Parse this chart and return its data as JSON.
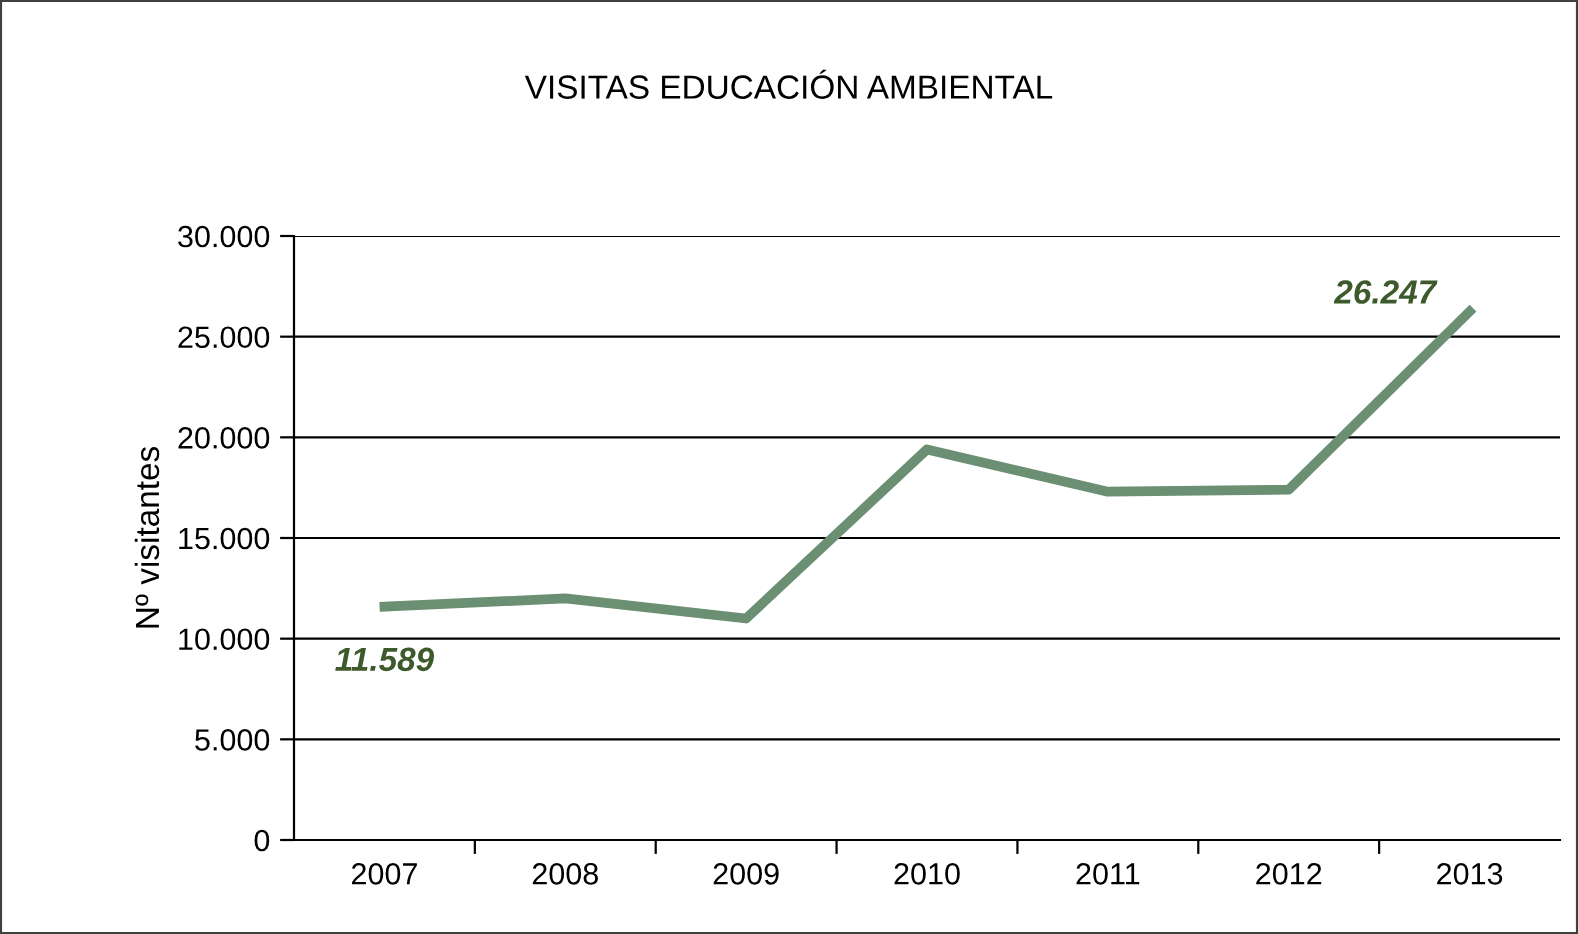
{
  "chart_data": {
    "type": "line",
    "title": "VISITAS EDUCACIÓN AMBIENTAL",
    "ylabel": "Nº visitantes",
    "categories": [
      "2007",
      "2008",
      "2009",
      "2010",
      "2011",
      "2012",
      "2013"
    ],
    "series": [
      {
        "color": "#6a8f72",
        "values": [
          11589,
          12000,
          11000,
          19400,
          17300,
          17400,
          26247
        ],
        "value_labels": [
          "11.589",
          null,
          null,
          null,
          null,
          null,
          "26.247"
        ]
      }
    ],
    "ylim": [
      0,
      30000
    ],
    "yticks": [
      {
        "value": 0,
        "label": "0"
      },
      {
        "value": 5000,
        "label": "5.000"
      },
      {
        "value": 10000,
        "label": "10.000"
      },
      {
        "value": 15000,
        "label": "15.000"
      },
      {
        "value": 20000,
        "label": "20.000"
      },
      {
        "value": 25000,
        "label": "25.000"
      },
      {
        "value": 30000,
        "label": "30.000"
      }
    ],
    "grid": "y",
    "marker": "none",
    "line_style": "solid"
  }
}
